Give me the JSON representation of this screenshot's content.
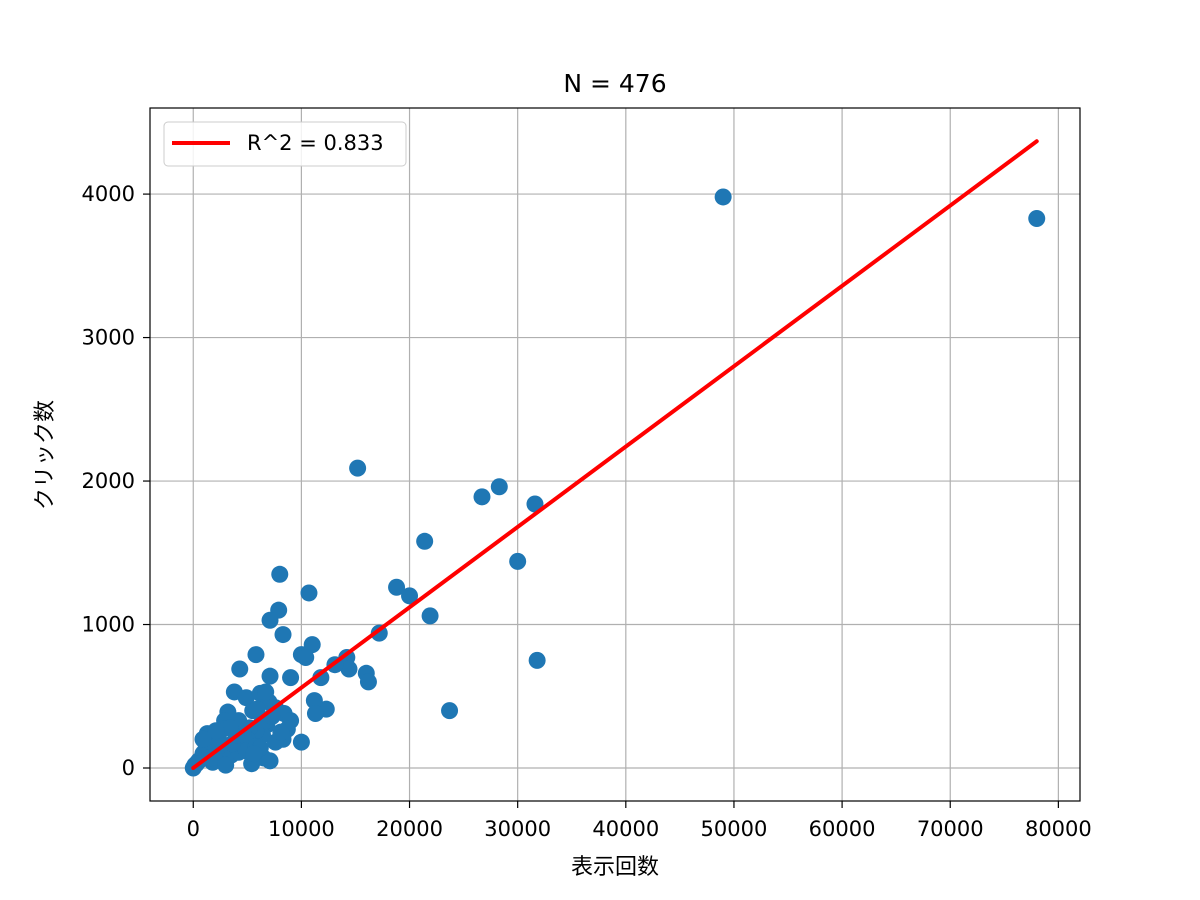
{
  "chart_data": {
    "type": "scatter",
    "title": "N = 476",
    "xlabel": "表示回数",
    "ylabel": "クリック数",
    "xlim": [
      -4000,
      82000
    ],
    "ylim": [
      -230,
      4600
    ],
    "xticks": [
      0,
      10000,
      20000,
      30000,
      40000,
      50000,
      60000,
      70000,
      80000
    ],
    "yticks": [
      0,
      1000,
      2000,
      3000,
      4000
    ],
    "grid": true,
    "legend": {
      "placement": "top-left",
      "entries": [
        {
          "label": "R^2 = 0.833",
          "style": "line",
          "color": "#ff0000"
        }
      ]
    },
    "regression_line": {
      "slope": 0.056,
      "intercept": 0,
      "x_range": [
        0,
        78000
      ],
      "color": "#ff0000"
    },
    "series": [
      {
        "color": "#1f77b4",
        "points": [
          [
            78000,
            3830
          ],
          [
            49000,
            3980
          ],
          [
            15200,
            2090
          ],
          [
            28300,
            1960
          ],
          [
            26700,
            1890
          ],
          [
            31600,
            1840
          ],
          [
            21400,
            1580
          ],
          [
            30000,
            1440
          ],
          [
            18800,
            1260
          ],
          [
            20000,
            1200
          ],
          [
            21900,
            1060
          ],
          [
            17200,
            940
          ],
          [
            31800,
            750
          ],
          [
            23700,
            400
          ],
          [
            16000,
            660
          ],
          [
            16200,
            600
          ],
          [
            14200,
            770
          ],
          [
            14400,
            690
          ],
          [
            13100,
            720
          ],
          [
            11800,
            630
          ],
          [
            12300,
            410
          ],
          [
            11200,
            470
          ],
          [
            11300,
            380
          ],
          [
            11000,
            860
          ],
          [
            10700,
            1220
          ],
          [
            10000,
            790
          ],
          [
            10400,
            770
          ],
          [
            10000,
            180
          ],
          [
            8000,
            1350
          ],
          [
            7900,
            1100
          ],
          [
            7100,
            1030
          ],
          [
            8300,
            930
          ],
          [
            5800,
            790
          ],
          [
            4300,
            690
          ],
          [
            7100,
            640
          ],
          [
            9000,
            630
          ],
          [
            3800,
            530
          ],
          [
            4900,
            490
          ],
          [
            6200,
            520
          ],
          [
            5500,
            400
          ],
          [
            7000,
            460
          ],
          [
            7600,
            420
          ],
          [
            8400,
            380
          ],
          [
            9000,
            330
          ],
          [
            8700,
            270
          ],
          [
            8300,
            200
          ],
          [
            6800,
            300
          ],
          [
            6200,
            300
          ],
          [
            6400,
            230
          ],
          [
            5800,
            260
          ],
          [
            5200,
            280
          ],
          [
            5000,
            200
          ],
          [
            4600,
            240
          ],
          [
            4500,
            150
          ],
          [
            3200,
            390
          ],
          [
            2900,
            330
          ],
          [
            2700,
            270
          ],
          [
            2300,
            210
          ],
          [
            1700,
            180
          ],
          [
            1300,
            240
          ],
          [
            1100,
            120
          ],
          [
            900,
            100
          ],
          [
            700,
            60
          ],
          [
            500,
            50
          ],
          [
            300,
            30
          ],
          [
            150,
            20
          ],
          [
            0,
            0
          ],
          [
            1800,
            40
          ],
          [
            2700,
            60
          ],
          [
            3500,
            90
          ],
          [
            4200,
            110
          ],
          [
            4900,
            120
          ],
          [
            5800,
            150
          ],
          [
            6500,
            70
          ],
          [
            5400,
            30
          ],
          [
            3000,
            20
          ],
          [
            2000,
            110
          ],
          [
            2500,
            160
          ],
          [
            3600,
            170
          ],
          [
            4000,
            230
          ],
          [
            7100,
            50
          ],
          [
            6200,
            140
          ],
          [
            7600,
            180
          ],
          [
            6700,
            330
          ],
          [
            5900,
            410
          ],
          [
            6700,
            530
          ],
          [
            4200,
            330
          ],
          [
            3400,
            280
          ],
          [
            2100,
            260
          ],
          [
            1500,
            70
          ],
          [
            900,
            200
          ],
          [
            7300,
            360
          ],
          [
            8100,
            250
          ],
          [
            5600,
            100
          ]
        ]
      }
    ]
  }
}
